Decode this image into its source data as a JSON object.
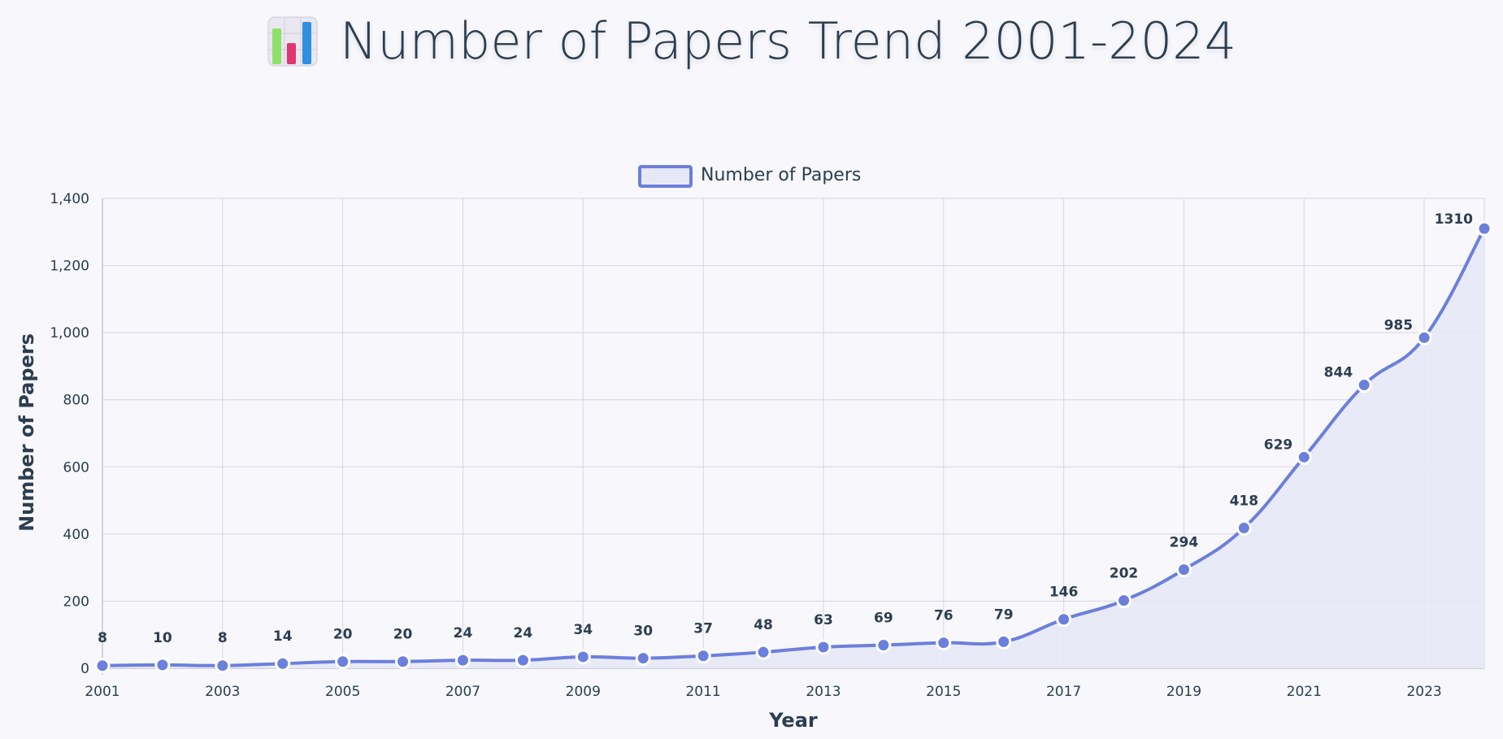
{
  "page": {
    "title": "Number of Papers Trend 2001-2024",
    "title_icon": "bar-chart-icon"
  },
  "colors": {
    "line": "#6b7fdc",
    "fill": "#e6e8f7",
    "grid": "#d6d6e0",
    "text": "#2c3e50"
  },
  "chart_data": {
    "type": "line",
    "xlabel": "Year",
    "ylabel": "Number of Papers",
    "x": [
      2001,
      2002,
      2003,
      2004,
      2005,
      2006,
      2007,
      2008,
      2009,
      2010,
      2011,
      2012,
      2013,
      2014,
      2015,
      2016,
      2017,
      2018,
      2019,
      2020,
      2021,
      2022,
      2023,
      2024
    ],
    "x_tick_labels": [
      "2001",
      "2003",
      "2005",
      "2007",
      "2009",
      "2011",
      "2013",
      "2015",
      "2017",
      "2019",
      "2021",
      "2023"
    ],
    "series": [
      {
        "name": "Number of Papers",
        "values": [
          8,
          10,
          8,
          14,
          20,
          20,
          24,
          24,
          34,
          30,
          37,
          48,
          63,
          69,
          76,
          79,
          146,
          202,
          294,
          418,
          629,
          844,
          985,
          1310
        ],
        "data_labels": [
          "8",
          "10",
          "8",
          "14",
          "20",
          "20",
          "24",
          "24",
          "34",
          "30",
          "37",
          "48",
          "63",
          "69",
          "76",
          "79",
          "146",
          "202",
          "294",
          "418",
          "629",
          "844",
          "985",
          "1310"
        ]
      }
    ],
    "ylim": [
      0,
      1400
    ],
    "y_ticks": [
      0,
      200,
      400,
      600,
      800,
      1000,
      1200,
      1400
    ],
    "y_tick_labels": [
      "0",
      "200",
      "400",
      "600",
      "800",
      "1,000",
      "1,200",
      "1,400"
    ],
    "grid": true,
    "legend": "top-center",
    "fill_area": true
  }
}
